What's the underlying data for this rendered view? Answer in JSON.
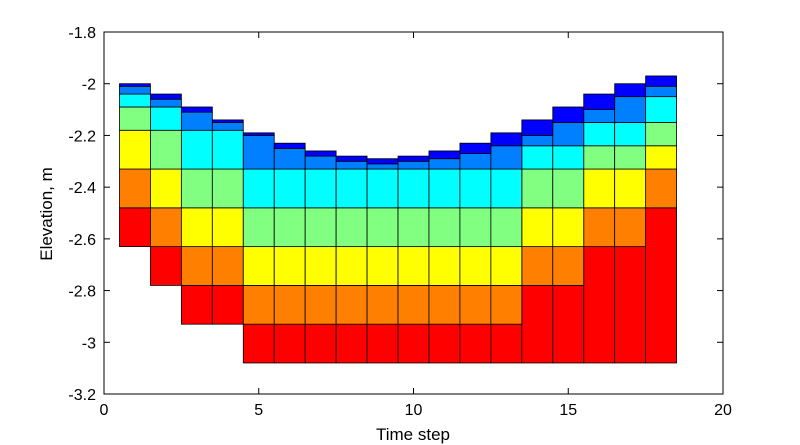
{
  "chart_data": {
    "type": "bar",
    "subtype": "stacked-layer-columns",
    "title": "",
    "xlabel": "Time step",
    "ylabel": "Elevation, m",
    "xlim": [
      0,
      20
    ],
    "ylim": [
      -3.2,
      -1.8
    ],
    "x_ticks": [
      0,
      5,
      10,
      15,
      20
    ],
    "y_ticks": [
      -1.8,
      -2,
      -2.2,
      -2.4,
      -2.6,
      -2.8,
      -3,
      -3.2
    ],
    "grid": false,
    "legend": "none",
    "bar_width": 1,
    "x": [
      1,
      2,
      3,
      4,
      5,
      6,
      7,
      8,
      9,
      10,
      11,
      12,
      13,
      14,
      15,
      16,
      17,
      18
    ],
    "layers": [
      {
        "color": "#ff0000",
        "intervals": [
          [
            -2.63,
            -2.48
          ],
          [
            -2.78,
            -2.48
          ],
          [
            -2.93,
            -2.78
          ],
          [
            -2.93,
            -2.78
          ],
          [
            -3.08,
            -2.93
          ],
          [
            -3.08,
            -2.93
          ],
          [
            -3.08,
            -2.93
          ],
          [
            -3.08,
            -2.93
          ],
          [
            -3.08,
            -2.93
          ],
          [
            -3.08,
            -2.93
          ],
          [
            -3.08,
            -2.93
          ],
          [
            -3.08,
            -2.93
          ],
          [
            -3.08,
            -2.93
          ],
          [
            -3.08,
            -2.78
          ],
          [
            -3.08,
            -2.78
          ],
          [
            -3.08,
            -2.63
          ],
          [
            -3.08,
            -2.63
          ],
          [
            -3.08,
            -2.48
          ]
        ]
      },
      {
        "color": "#ff8000",
        "intervals": [
          [
            -2.48,
            -2.33
          ],
          [
            -2.63,
            -2.48
          ],
          [
            -2.78,
            -2.63
          ],
          [
            -2.78,
            -2.63
          ],
          [
            -2.93,
            -2.78
          ],
          [
            -2.93,
            -2.78
          ],
          [
            -2.93,
            -2.78
          ],
          [
            -2.93,
            -2.78
          ],
          [
            -2.93,
            -2.78
          ],
          [
            -2.93,
            -2.78
          ],
          [
            -2.93,
            -2.78
          ],
          [
            -2.93,
            -2.78
          ],
          [
            -2.93,
            -2.78
          ],
          [
            -2.78,
            -2.63
          ],
          [
            -2.78,
            -2.63
          ],
          [
            -2.63,
            -2.48
          ],
          [
            -2.63,
            -2.48
          ],
          [
            -2.48,
            -2.33
          ]
        ]
      },
      {
        "color": "#ffff00",
        "intervals": [
          [
            -2.33,
            -2.18
          ],
          [
            -2.48,
            -2.33
          ],
          [
            -2.63,
            -2.48
          ],
          [
            -2.63,
            -2.48
          ],
          [
            -2.78,
            -2.63
          ],
          [
            -2.78,
            -2.63
          ],
          [
            -2.78,
            -2.63
          ],
          [
            -2.78,
            -2.63
          ],
          [
            -2.78,
            -2.63
          ],
          [
            -2.78,
            -2.63
          ],
          [
            -2.78,
            -2.63
          ],
          [
            -2.78,
            -2.63
          ],
          [
            -2.78,
            -2.63
          ],
          [
            -2.63,
            -2.48
          ],
          [
            -2.63,
            -2.48
          ],
          [
            -2.48,
            -2.33
          ],
          [
            -2.48,
            -2.33
          ],
          [
            -2.33,
            -2.24
          ]
        ]
      },
      {
        "color": "#80ff80",
        "intervals": [
          [
            -2.18,
            -2.09
          ],
          [
            -2.33,
            -2.18
          ],
          [
            -2.48,
            -2.33
          ],
          [
            -2.48,
            -2.33
          ],
          [
            -2.63,
            -2.48
          ],
          [
            -2.63,
            -2.48
          ],
          [
            -2.63,
            -2.48
          ],
          [
            -2.63,
            -2.48
          ],
          [
            -2.63,
            -2.48
          ],
          [
            -2.63,
            -2.48
          ],
          [
            -2.63,
            -2.48
          ],
          [
            -2.63,
            -2.48
          ],
          [
            -2.63,
            -2.48
          ],
          [
            -2.48,
            -2.33
          ],
          [
            -2.48,
            -2.33
          ],
          [
            -2.33,
            -2.24
          ],
          [
            -2.33,
            -2.24
          ],
          [
            -2.24,
            -2.15
          ]
        ]
      },
      {
        "color": "#00ffff",
        "intervals": [
          [
            -2.09,
            -2.04
          ],
          [
            -2.18,
            -2.09
          ],
          [
            -2.33,
            -2.18
          ],
          [
            -2.33,
            -2.18
          ],
          [
            -2.48,
            -2.33
          ],
          [
            -2.48,
            -2.33
          ],
          [
            -2.48,
            -2.33
          ],
          [
            -2.48,
            -2.33
          ],
          [
            -2.48,
            -2.33
          ],
          [
            -2.48,
            -2.33
          ],
          [
            -2.48,
            -2.33
          ],
          [
            -2.48,
            -2.33
          ],
          [
            -2.48,
            -2.33
          ],
          [
            -2.33,
            -2.24
          ],
          [
            -2.33,
            -2.24
          ],
          [
            -2.24,
            -2.15
          ],
          [
            -2.24,
            -2.15
          ],
          [
            -2.15,
            -2.05
          ]
        ]
      },
      {
        "color": "#0080ff",
        "intervals": [
          [
            -2.04,
            -2.01
          ],
          [
            -2.09,
            -2.06
          ],
          [
            -2.18,
            -2.11
          ],
          [
            -2.18,
            -2.15
          ],
          [
            -2.33,
            -2.2
          ],
          [
            -2.33,
            -2.25
          ],
          [
            -2.33,
            -2.28
          ],
          [
            -2.33,
            -2.3
          ],
          [
            -2.33,
            -2.31
          ],
          [
            -2.33,
            -2.3
          ],
          [
            -2.33,
            -2.29
          ],
          [
            -2.33,
            -2.27
          ],
          [
            -2.33,
            -2.24
          ],
          [
            -2.24,
            -2.2
          ],
          [
            -2.24,
            -2.15
          ],
          [
            -2.15,
            -2.1
          ],
          [
            -2.15,
            -2.05
          ],
          [
            -2.05,
            -2.01
          ]
        ]
      },
      {
        "color": "#0000ff",
        "intervals": [
          [
            -2.01,
            -2.0
          ],
          [
            -2.06,
            -2.04
          ],
          [
            -2.11,
            -2.09
          ],
          [
            -2.15,
            -2.14
          ],
          [
            -2.2,
            -2.19
          ],
          [
            -2.25,
            -2.23
          ],
          [
            -2.28,
            -2.26
          ],
          [
            -2.3,
            -2.28
          ],
          [
            -2.31,
            -2.29
          ],
          [
            -2.3,
            -2.28
          ],
          [
            -2.29,
            -2.26
          ],
          [
            -2.27,
            -2.23
          ],
          [
            -2.24,
            -2.19
          ],
          [
            -2.2,
            -2.14
          ],
          [
            -2.15,
            -2.09
          ],
          [
            -2.1,
            -2.04
          ],
          [
            -2.05,
            -2.0
          ],
          [
            -2.01,
            -1.97
          ]
        ]
      }
    ]
  }
}
